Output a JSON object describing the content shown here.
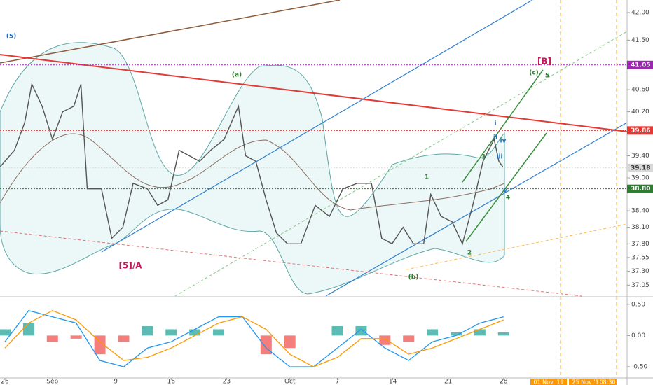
{
  "chart_data": {
    "type": "line",
    "x": [
      -0.6,
      1.2,
      2.5,
      3.4,
      4.7,
      6.0,
      7.3,
      8.7,
      9.6,
      10.4,
      12.2,
      13.5,
      14.9,
      16.2,
      18.0,
      19.3,
      20.6,
      22.0,
      23.3,
      24.6,
      26.0,
      27.7,
      29.5,
      30.4,
      31.7,
      33.0,
      34.3,
      35.7,
      37.4,
      39.2,
      41.0,
      42.7,
      44.5,
      46.3,
      47.6,
      48.9,
      50.3,
      51.6,
      52.9,
      53.8,
      55.1,
      56.5,
      57.8,
      59.1,
      60.4,
      61.8,
      62.4,
      62.9
    ],
    "values": [
      39.2,
      39.5,
      40.0,
      40.7,
      40.3,
      39.7,
      40.2,
      40.3,
      40.7,
      38.8,
      38.8,
      37.9,
      38.1,
      38.9,
      38.8,
      38.5,
      38.6,
      39.5,
      39.4,
      39.3,
      39.5,
      39.7,
      40.3,
      39.4,
      39.3,
      38.6,
      38.0,
      37.8,
      37.8,
      38.5,
      38.3,
      38.8,
      38.9,
      38.9,
      37.9,
      37.8,
      38.1,
      37.8,
      37.8,
      38.7,
      38.3,
      38.2,
      37.8,
      38.5,
      39.3,
      39.7,
      39.3,
      39.2
    ],
    "color": "#555555",
    "xlim": [
      -0.62,
      78.6
    ],
    "ylim": [
      36.85,
      42.23
    ],
    "xticks": [
      {
        "value": 0,
        "label": "26"
      },
      {
        "value": 6,
        "label": "Sep"
      },
      {
        "value": 14,
        "label": "9"
      },
      {
        "value": 21,
        "label": "16"
      },
      {
        "value": 28,
        "label": "23"
      },
      {
        "value": 36,
        "label": "Oct"
      },
      {
        "value": 42,
        "label": "7"
      },
      {
        "value": 49,
        "label": "14"
      },
      {
        "value": 56,
        "label": "21"
      },
      {
        "value": 63,
        "label": "28"
      }
    ],
    "yticks": [
      {
        "value": 42,
        "label": "42.00"
      },
      {
        "value": 41.5,
        "label": "41.50"
      },
      {
        "value": 40.6,
        "label": "40.60"
      },
      {
        "value": 40.2,
        "label": "40.20"
      },
      {
        "value": 39.4,
        "label": "39.40"
      },
      {
        "value": 39,
        "label": "39.00"
      },
      {
        "value": 38.4,
        "label": "38.40"
      },
      {
        "value": 38.1,
        "label": "38.10"
      },
      {
        "value": 37.8,
        "label": "37.80"
      },
      {
        "value": 37.55,
        "label": "37.55"
      },
      {
        "value": 37.3,
        "label": "37.30"
      },
      {
        "value": 37.05,
        "label": "37.05"
      }
    ],
    "price_labels": [
      {
        "value": 41.05,
        "label": "41.05",
        "color": "#9c27b0"
      },
      {
        "value": 39.86,
        "label": "39.86",
        "color": "#e53935"
      },
      {
        "value": 39.18,
        "label": "39.18",
        "color": "#d8d8d8"
      },
      {
        "value": 38.8,
        "label": "38.80",
        "color": "#2e7d32"
      }
    ],
    "annotations": [
      "(5)",
      "(a)",
      "[5]/A",
      "(b)",
      "(c)",
      "5",
      "[B]",
      "1",
      "2",
      "3",
      "4",
      "i",
      "ii",
      "iii",
      "iv",
      "v"
    ],
    "time_labels": [
      "01 Nov '19",
      "25 Nov '19",
      "08:30"
    ],
    "macd": {
      "x": [
        0,
        3,
        6,
        9,
        12,
        15,
        18,
        21,
        24,
        27,
        30,
        33,
        36,
        39,
        42,
        45,
        48,
        51,
        54,
        57,
        60,
        63
      ],
      "macd": [
        -0.1,
        0.4,
        0.3,
        0.2,
        -0.4,
        -0.5,
        -0.2,
        -0.1,
        0.1,
        0.3,
        0.3,
        -0.2,
        -0.5,
        -0.5,
        -0.2,
        0.1,
        -0.2,
        -0.4,
        -0.1,
        0.0,
        0.2,
        0.3
      ],
      "signal": [
        -0.2,
        0.2,
        0.4,
        0.25,
        -0.1,
        -0.4,
        -0.35,
        -0.2,
        0,
        0.2,
        0.3,
        0.1,
        -0.3,
        -0.5,
        -0.35,
        -0.05,
        -0.05,
        -0.3,
        -0.2,
        -0.05,
        0.1,
        0.25
      ],
      "histogram": [
        0.1,
        0.2,
        -0.1,
        -0.05,
        -0.3,
        -0.1,
        0.15,
        0.1,
        0.1,
        0.1,
        0,
        -0.3,
        -0.2,
        0,
        0.15,
        0.15,
        -0.15,
        -0.1,
        0.1,
        0.05,
        0.1,
        0.05
      ],
      "macd_color": "#2196f3",
      "signal_color": "#ff9800",
      "up_color": "#26a69a",
      "down_color": "#ef5350",
      "y2lim": [
        -0.68,
        0.61
      ],
      "y2ticks": [
        {
          "value": 0.5,
          "label": "0.50"
        },
        {
          "value": 0,
          "label": "0.00"
        },
        {
          "value": -0.5,
          "label": "-0.50"
        }
      ]
    }
  }
}
